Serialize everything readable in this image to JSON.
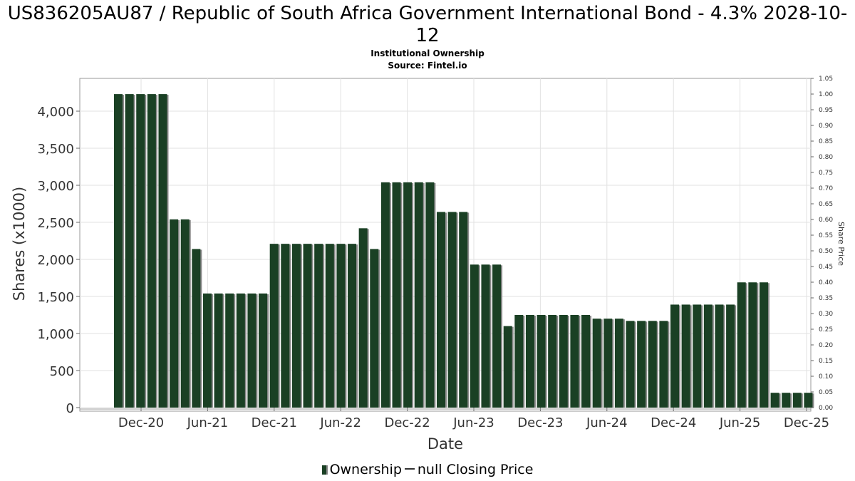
{
  "title": "US836205AU87 / Republic of South Africa Government International Bond - 4.3% 2028-10-12",
  "subtitle": "Institutional Ownership",
  "source": "Source: Fintel.io",
  "legend": {
    "ownership_label": "Ownership",
    "price_label": "null Closing Price"
  },
  "colors": {
    "bar": "#1a4024",
    "bar_shadow": "#8a8a8a",
    "grid": "#e2e2e2"
  },
  "chart_data": {
    "type": "bar",
    "xlabel": "Date",
    "ylabel": "Shares (x1000)",
    "y2label": "Share Price",
    "ylim": [
      0,
      4400
    ],
    "y2lim": [
      0,
      1.05
    ],
    "grid": true,
    "legend_position": "bottom",
    "x_ticks": [
      "Dec-20",
      "Jun-21",
      "Dec-21",
      "Jun-22",
      "Dec-22",
      "Jun-23",
      "Dec-23",
      "Jun-24",
      "Dec-24",
      "Jun-25",
      "Dec-25"
    ],
    "y_ticks": [
      "0",
      "500",
      "1,000",
      "1,500",
      "2,000",
      "2,500",
      "3,000",
      "3,500",
      "4,000"
    ],
    "y2_ticks": [
      "0.00",
      "0.05",
      "0.10",
      "0.15",
      "0.20",
      "0.25",
      "0.30",
      "0.35",
      "0.40",
      "0.45",
      "0.50",
      "0.55",
      "0.60",
      "0.65",
      "0.70",
      "0.75",
      "0.80",
      "0.85",
      "0.90",
      "0.95",
      "1.00",
      "1.05"
    ],
    "series": [
      {
        "name": "Ownership",
        "values": [
          4230,
          4230,
          4230,
          4230,
          4230,
          2540,
          2540,
          2140,
          1540,
          1540,
          1540,
          1540,
          1540,
          1540,
          2210,
          2210,
          2210,
          2210,
          2210,
          2210,
          2210,
          2210,
          2420,
          2140,
          3040,
          3040,
          3040,
          3040,
          3040,
          2640,
          2640,
          2640,
          1930,
          1930,
          1930,
          1100,
          1250,
          1250,
          1250,
          1250,
          1250,
          1250,
          1250,
          1200,
          1200,
          1200,
          1170,
          1170,
          1170,
          1170,
          1390,
          1390,
          1390,
          1390,
          1390,
          1390,
          1690,
          1690,
          1690,
          200,
          200,
          200,
          200
        ]
      }
    ]
  }
}
